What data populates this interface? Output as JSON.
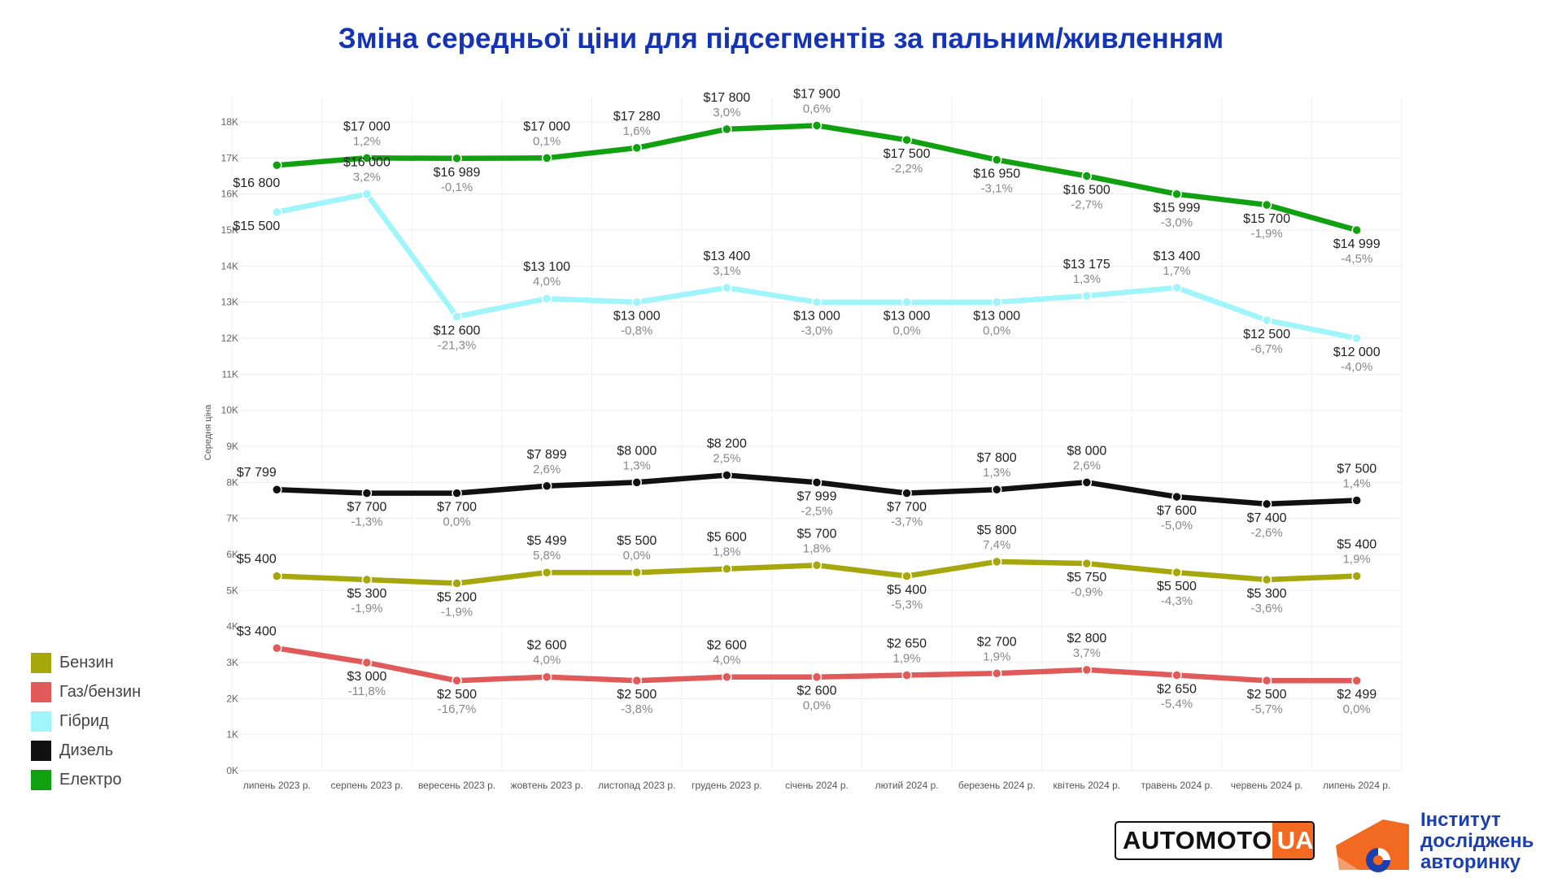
{
  "title": "Зміна середньої ціни для підсегментів за пальним/живленням",
  "legend": [
    {
      "label": "Бензин",
      "color": "#a6a60d"
    },
    {
      "label": "Газ/бензин",
      "color": "#e05a5a"
    },
    {
      "label": "Гібрид",
      "color": "#9ff5fa"
    },
    {
      "label": "Дизель",
      "color": "#111111"
    },
    {
      "label": "Електро",
      "color": "#10a010"
    }
  ],
  "logos": {
    "automoto_left": "AUTOMOTO",
    "automoto_right": "UA",
    "institute_lines": [
      "Інститут",
      "досліджень",
      "авторинку"
    ]
  },
  "chart_data": {
    "type": "line",
    "ylabel": "Середня ціна",
    "xlabel": "",
    "ylim": [
      0,
      18000
    ],
    "y_ticks": [
      "0K",
      "1K",
      "2K",
      "3K",
      "4K",
      "5K",
      "6K",
      "7K",
      "8K",
      "9K",
      "10K",
      "11K",
      "12K",
      "13K",
      "14K",
      "15K",
      "16K",
      "17K",
      "18K"
    ],
    "categories": [
      "липень 2023 р.",
      "серпень 2023 р.",
      "вересень 2023 р.",
      "жовтень 2023 р.",
      "листопад 2023 р.",
      "грудень 2023 р.",
      "січень 2024 р.",
      "лютий 2024 р.",
      "березень 2024 р.",
      "квітень 2024 р.",
      "травень 2024 р.",
      "червень 2024 р.",
      "липень 2024 р."
    ],
    "grid": true,
    "legend_position": "left",
    "series": [
      {
        "name": "Електро",
        "color": "#10a010",
        "values": [
          16800,
          17000,
          16989,
          17000,
          17280,
          17800,
          17900,
          17500,
          16950,
          16500,
          15999,
          15700,
          14999
        ],
        "labels": [
          "$16 800",
          "$17 000",
          "$16 989",
          "$17 000",
          "$17 280",
          "$17 800",
          "$17 900",
          "$17 500",
          "$16 950",
          "$16 500",
          "$15 999",
          "$15 700",
          "$14 999"
        ],
        "changes": [
          "",
          "1,2%",
          "-0,1%",
          "0,1%",
          "1,6%",
          "3,0%",
          "0,6%",
          "-2,2%",
          "-3,1%",
          "-2,7%",
          "-3,0%",
          "-1,9%",
          "-4,5%"
        ]
      },
      {
        "name": "Гібрид",
        "color": "#9ff5fa",
        "values": [
          15500,
          16000,
          12600,
          13100,
          13000,
          13400,
          13000,
          13000,
          13000,
          13175,
          13400,
          12500,
          12000
        ],
        "labels": [
          "$15 500",
          "$16 000",
          "$12 600",
          "$13 100",
          "$13 000",
          "$13 400",
          "$13 000",
          "$13 000",
          "$13 000",
          "$13 175",
          "$13 400",
          "$12 500",
          "$12 000"
        ],
        "changes": [
          "",
          "3,2%",
          "-21,3%",
          "4,0%",
          "-0,8%",
          "3,1%",
          "-3,0%",
          "0,0%",
          "0,0%",
          "1,3%",
          "1,7%",
          "-6,7%",
          "-4,0%"
        ]
      },
      {
        "name": "Дизель",
        "color": "#111111",
        "values": [
          7799,
          7700,
          7700,
          7899,
          8000,
          8200,
          7999,
          7700,
          7800,
          8000,
          7600,
          7400,
          7500
        ],
        "labels": [
          "$7 799",
          "$7 700",
          "$7 700",
          "$7 899",
          "$8 000",
          "$8 200",
          "$7 999",
          "$7 700",
          "$7 800",
          "$8 000",
          "$7 600",
          "$7 400",
          "$7 500"
        ],
        "changes": [
          "",
          "-1,3%",
          "0,0%",
          "2,6%",
          "1,3%",
          "2,5%",
          "-2,5%",
          "-3,7%",
          "1,3%",
          "2,6%",
          "-5,0%",
          "-2,6%",
          "1,4%"
        ]
      },
      {
        "name": "Бензин",
        "color": "#a6a60d",
        "values": [
          5400,
          5300,
          5200,
          5499,
          5500,
          5600,
          5700,
          5400,
          5800,
          5750,
          5500,
          5300,
          5400
        ],
        "labels": [
          "$5 400",
          "$5 300",
          "$5 200",
          "$5 499",
          "$5 500",
          "$5 600",
          "$5 700",
          "$5 400",
          "$5 800",
          "$5 750",
          "$5 500",
          "$5 300",
          "$5 400"
        ],
        "changes": [
          "",
          "-1,9%",
          "-1,9%",
          "5,8%",
          "0,0%",
          "1,8%",
          "1,8%",
          "-5,3%",
          "7,4%",
          "-0,9%",
          "-4,3%",
          "-3,6%",
          "1,9%"
        ]
      },
      {
        "name": "Газ/бензин",
        "color": "#e05a5a",
        "values": [
          3400,
          3000,
          2500,
          2600,
          2500,
          2600,
          2600,
          2650,
          2700,
          2800,
          2650,
          2500,
          2499
        ],
        "labels": [
          "$3 400",
          "$3 000",
          "$2 500",
          "$2 600",
          "$2 500",
          "$2 600",
          "$2 600",
          "$2 650",
          "$2 700",
          "$2 800",
          "$2 650",
          "$2 500",
          "$2 499"
        ],
        "changes": [
          "",
          "-11,8%",
          "-16,7%",
          "4,0%",
          "-3,8%",
          "4,0%",
          "0,0%",
          "1,9%",
          "1,9%",
          "3,7%",
          "-5,4%",
          "-5,7%",
          "0,0%"
        ]
      }
    ]
  }
}
